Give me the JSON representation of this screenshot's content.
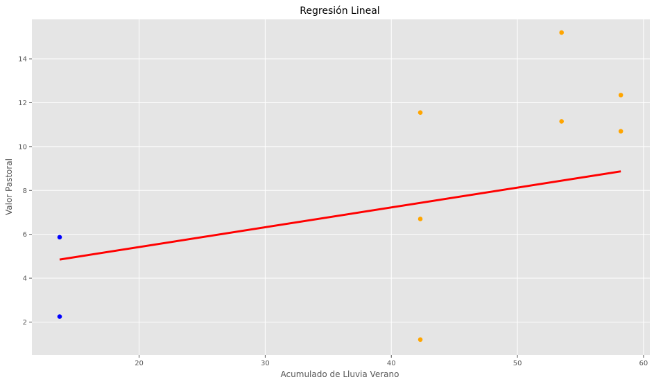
{
  "chart_data": {
    "type": "scatter",
    "title": "Regresión Lineal",
    "xlabel": "Acumulado de Lluvia Verano",
    "ylabel": "Valor Pastoral",
    "xlim": [
      11.5,
      60.5
    ],
    "ylim": [
      0.5,
      15.8
    ],
    "xticks": [
      20,
      30,
      40,
      50,
      60
    ],
    "yticks": [
      2,
      4,
      6,
      8,
      10,
      12,
      14
    ],
    "grid": true,
    "background": "#e5e5e5",
    "grid_color": "#ffffff",
    "series": [
      {
        "color": "#0000ff",
        "points": [
          [
            13.7,
            5.87
          ],
          [
            13.7,
            2.25
          ]
        ]
      },
      {
        "color": "#ffa500",
        "points": [
          [
            42.3,
            11.55
          ],
          [
            42.3,
            6.7
          ],
          [
            42.3,
            1.2
          ],
          [
            53.5,
            15.2
          ],
          [
            53.5,
            11.15
          ],
          [
            58.2,
            12.35
          ],
          [
            58.2,
            10.7
          ]
        ]
      }
    ],
    "regression_line": {
      "color": "#ff0000",
      "x": [
        13.7,
        58.2
      ],
      "y": [
        4.85,
        8.87
      ]
    }
  }
}
